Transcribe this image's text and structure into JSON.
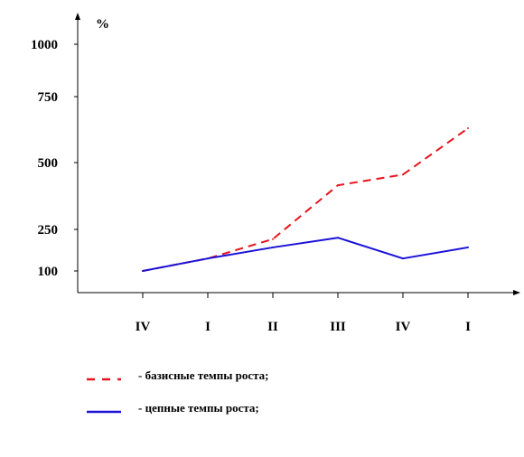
{
  "chart_data": {
    "type": "line",
    "categories": [
      "IV",
      "I",
      "II",
      "III",
      "IV",
      "I"
    ],
    "ylabel": "%",
    "yticks": [
      100,
      250,
      500,
      750,
      1000
    ],
    "series": [
      {
        "name": "- базисные темпы роста;",
        "color": "#e8141e",
        "dash": "dashed",
        "values": [
          100,
          145,
          215,
          415,
          455,
          630
        ]
      },
      {
        "name": "- цепные темпы роста;",
        "color": "#1a12d6",
        "dash": "solid",
        "values": [
          100,
          145,
          185,
          220,
          145,
          185
        ]
      }
    ],
    "grid": false,
    "legend_position": "bottom-left"
  }
}
